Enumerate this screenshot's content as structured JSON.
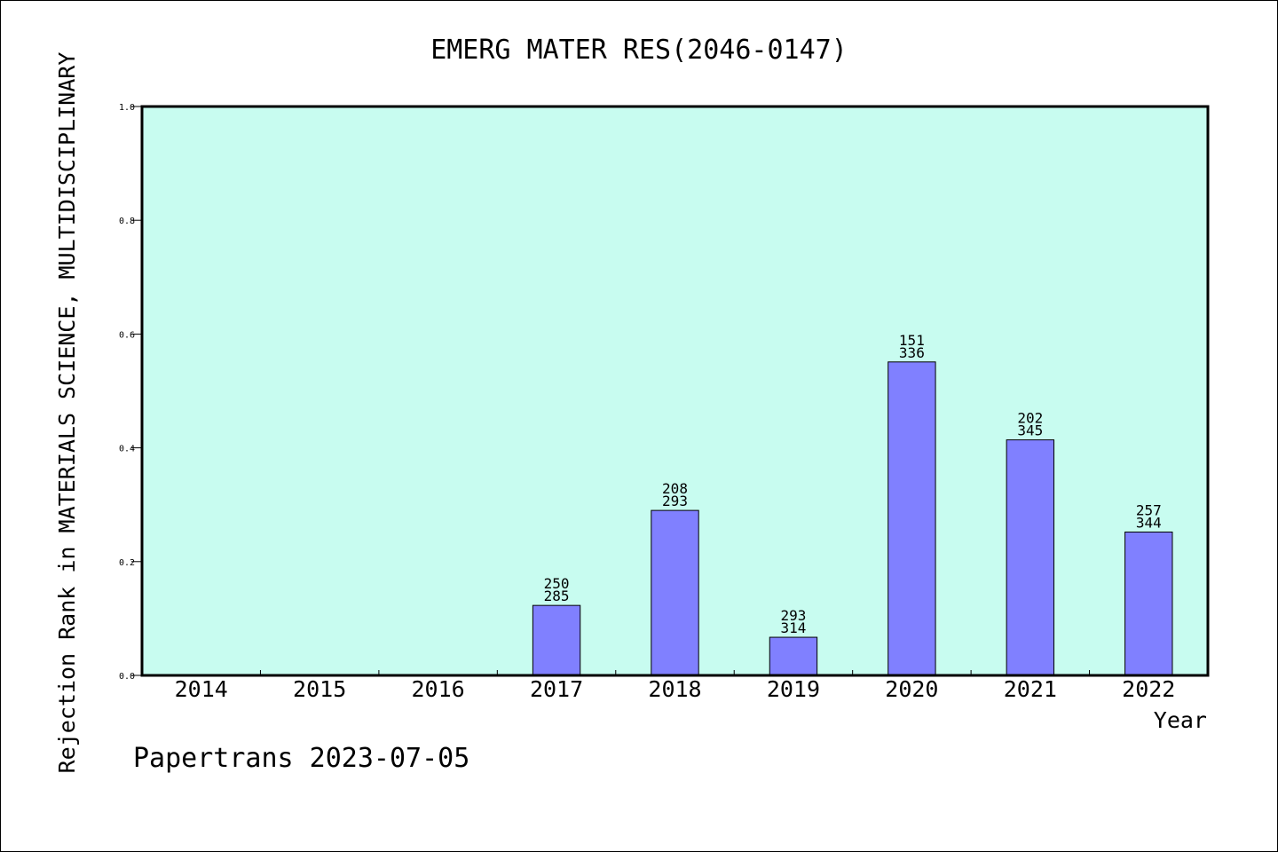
{
  "chart_data": {
    "type": "bar",
    "title": "EMERG MATER RES(2046-0147)",
    "xlabel": "Year",
    "ylabel": "Rejection Rank in MATERIALS SCIENCE, MULTIDISCIPLINARY",
    "ylim": [
      0,
      1.0
    ],
    "yticks": [
      "0.0",
      "0.2",
      "0.4",
      "0.6",
      "0.8",
      "1.0"
    ],
    "categories": [
      "2014",
      "2015",
      "2016",
      "2017",
      "2018",
      "2019",
      "2020",
      "2021",
      "2022"
    ],
    "values": [
      null,
      null,
      null,
      0.123,
      0.29,
      0.067,
      0.551,
      0.414,
      0.252
    ],
    "labels_top": [
      "",
      "",
      "",
      "250",
      "208",
      "293",
      "151",
      "202",
      "257"
    ],
    "labels_bottom": [
      "",
      "",
      "",
      "285",
      "293",
      "314",
      "336",
      "345",
      "344"
    ],
    "grid": false,
    "colors": {
      "plot_background": "#c8fcf0",
      "bar_fill": "#8080ff",
      "bar_stroke": "#000000"
    }
  },
  "footer": {
    "credit": "Papertrans 2023-07-05"
  }
}
